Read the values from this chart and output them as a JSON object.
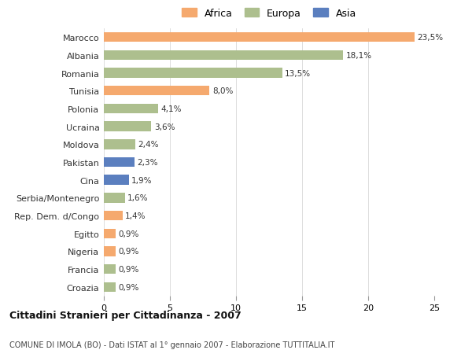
{
  "categories": [
    "Marocco",
    "Albania",
    "Romania",
    "Tunisia",
    "Polonia",
    "Ucraina",
    "Moldova",
    "Pakistan",
    "Cina",
    "Serbia/Montenegro",
    "Rep. Dem. d/Congo",
    "Egitto",
    "Nigeria",
    "Francia",
    "Croazia"
  ],
  "values": [
    23.5,
    18.1,
    13.5,
    8.0,
    4.1,
    3.6,
    2.4,
    2.3,
    1.9,
    1.6,
    1.4,
    0.9,
    0.9,
    0.9,
    0.9
  ],
  "labels": [
    "23,5%",
    "18,1%",
    "13,5%",
    "8,0%",
    "4,1%",
    "3,6%",
    "2,4%",
    "2,3%",
    "1,9%",
    "1,6%",
    "1,4%",
    "0,9%",
    "0,9%",
    "0,9%",
    "0,9%"
  ],
  "continent": [
    "Africa",
    "Europa",
    "Europa",
    "Africa",
    "Europa",
    "Europa",
    "Europa",
    "Asia",
    "Asia",
    "Europa",
    "Africa",
    "Africa",
    "Africa",
    "Europa",
    "Europa"
  ],
  "colors": {
    "Africa": "#F5A96E",
    "Europa": "#ADBF8E",
    "Asia": "#5B7FBF"
  },
  "xlim": [
    0,
    25
  ],
  "xticks": [
    0,
    5,
    10,
    15,
    20,
    25
  ],
  "title_bold": "Cittadini Stranieri per Cittadinanza - 2007",
  "subtitle": "COMUNE DI IMOLA (BO) - Dati ISTAT al 1° gennaio 2007 - Elaborazione TUTTITALIA.IT",
  "bg_color": "#ffffff",
  "grid_color": "#dddddd"
}
